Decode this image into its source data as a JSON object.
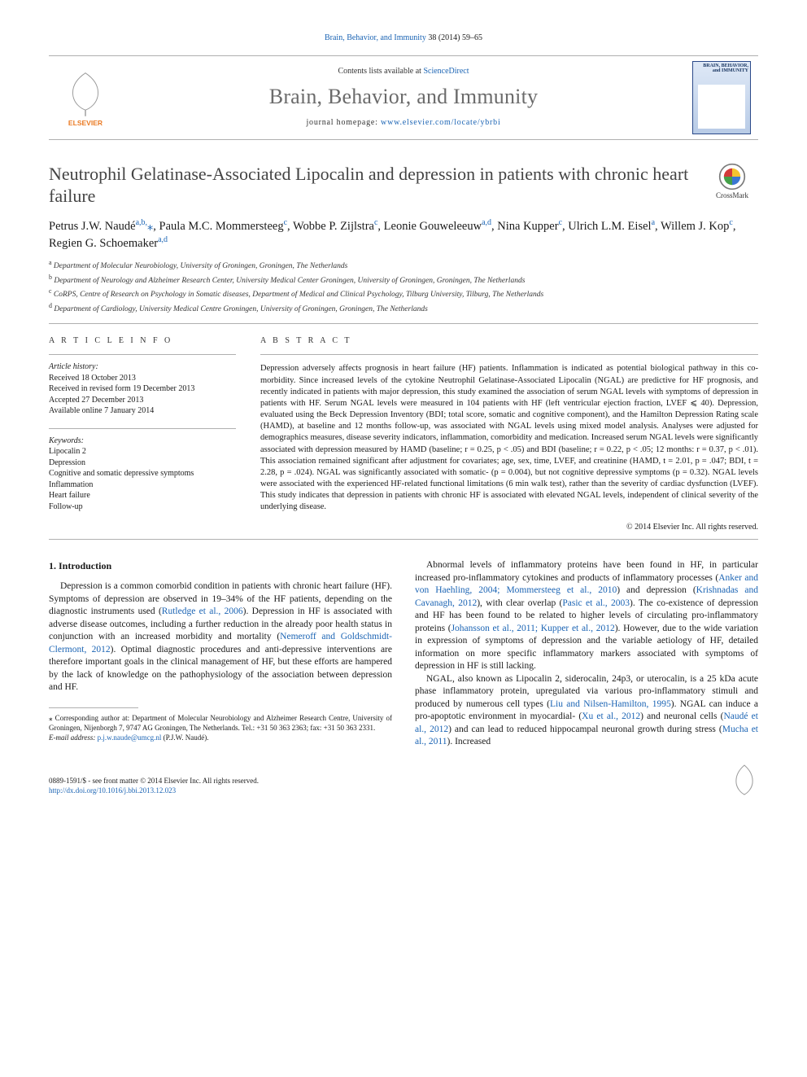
{
  "citation": {
    "journal_link": "Brain, Behavior, and Immunity",
    "issue": "38 (2014) 59–65"
  },
  "masthead": {
    "contents_prefix": "Contents lists available at ",
    "contents_link": "ScienceDirect",
    "journal_name": "Brain, Behavior, and Immunity",
    "homepage_prefix": "journal homepage: ",
    "homepage_url": "www.elsevier.com/locate/ybrbi",
    "cover_label": "BRAIN, BEHAVIOR, and IMMUNITY"
  },
  "article": {
    "title": "Neutrophil Gelatinase-Associated Lipocalin and depression in patients with chronic heart failure",
    "crossmark": "CrossMark"
  },
  "authors_html_parts": [
    {
      "name": "Petrus J.W. Naudé",
      "sup": "a,b,",
      "symb": "⁎"
    },
    {
      "name": ", Paula M.C. Mommersteeg",
      "sup": "c"
    },
    {
      "name": ", Wobbe P. Zijlstra",
      "sup": "c"
    },
    {
      "name": ", Leonie Gouweleeuw",
      "sup": "a,d"
    },
    {
      "name": ", Nina Kupper",
      "sup": "c"
    },
    {
      "name": ", Ulrich L.M. Eisel",
      "sup": "a"
    },
    {
      "name": ", Willem J. Kop",
      "sup": "c"
    },
    {
      "name": ", Regien G. Schoemaker",
      "sup": "a,d"
    }
  ],
  "affiliations": [
    {
      "sup": "a",
      "text": "Department of Molecular Neurobiology, University of Groningen, Groningen, The Netherlands"
    },
    {
      "sup": "b",
      "text": "Department of Neurology and Alzheimer Research Center, University Medical Center Groningen, University of Groningen, Groningen, The Netherlands"
    },
    {
      "sup": "c",
      "text": "CoRPS, Centre of Research on Psychology in Somatic diseases, Department of Medical and Clinical Psychology, Tilburg University, Tilburg, The Netherlands"
    },
    {
      "sup": "d",
      "text": "Department of Cardiology, University Medical Centre Groningen, University of Groningen, Groningen, The Netherlands"
    }
  ],
  "info_heading": "A R T I C L E   I N F O",
  "history_label": "Article history:",
  "history": [
    "Received 18 October 2013",
    "Received in revised form 19 December 2013",
    "Accepted 27 December 2013",
    "Available online 7 January 2014"
  ],
  "keywords_label": "Keywords:",
  "keywords": [
    "Lipocalin 2",
    "Depression",
    "Cognitive and somatic depressive symptoms",
    "Inflammation",
    "Heart failure",
    "Follow-up"
  ],
  "abstract_heading": "A B S T R A C T",
  "abstract": "Depression adversely affects prognosis in heart failure (HF) patients. Inflammation is indicated as potential biological pathway in this co-morbidity. Since increased levels of the cytokine Neutrophil Gelatinase-Associated Lipocalin (NGAL) are predictive for HF prognosis, and recently indicated in patients with major depression, this study examined the association of serum NGAL levels with symptoms of depression in patients with HF. Serum NGAL levels were measured in 104 patients with HF (left ventricular ejection fraction, LVEF ⩽ 40). Depression, evaluated using the Beck Depression Inventory (BDI; total score, somatic and cognitive component), and the Hamilton Depression Rating scale (HAMD), at baseline and 12 months follow-up, was associated with NGAL levels using mixed model analysis. Analyses were adjusted for demographics measures, disease severity indicators, inflammation, comorbidity and medication. Increased serum NGAL levels were significantly associated with depression measured by HAMD (baseline; r = 0.25, p < .05) and BDI (baseline; r = 0.22, p < .05; 12 months: r = 0.37, p < .01). This association remained significant after adjustment for covariates; age, sex, time, LVEF, and creatinine (HAMD, t = 2.01, p = .047; BDI, t = 2.28, p = .024). NGAL was significantly associated with somatic- (p = 0.004), but not cognitive depressive symptoms (p = 0.32). NGAL levels were associated with the experienced HF-related functional limitations (6 min walk test), rather than the severity of cardiac dysfunction (LVEF). This study indicates that depression in patients with chronic HF is associated with elevated NGAL levels, independent of clinical severity of the underlying disease.",
  "copyright": "© 2014 Elsevier Inc. All rights reserved.",
  "section1_heading": "1. Introduction",
  "body": {
    "p1a": "Depression is a common comorbid condition in patients with chronic heart failure (HF). Symptoms of depression are observed in 19–34% of the HF patients, depending on the diagnostic instruments used (",
    "p1_ref1": "Rutledge et al., 2006",
    "p1b": "). Depression in HF is associated with adverse disease outcomes, including a further reduction in the already poor health status in conjunction with an increased morbidity and mortality (",
    "p1_ref2": "Nemeroff and Goldschmidt-Clermont, 2012",
    "p1c": "). Optimal diagnostic procedures and anti-depressive interventions are therefore important goals in the clinical management of HF, but these efforts are hampered by the lack of knowledge on the pathophysiology of the association between depression and HF.",
    "p2a": "Abnormal levels of inflammatory proteins have been found in HF, in particular increased pro-inflammatory cytokines and products of inflammatory processes (",
    "p2_ref1": "Anker and von Haehling, 2004; Mommersteeg et al., 2010",
    "p2b": ") and depression (",
    "p2_ref2": "Krishnadas and Cavanagh, 2012",
    "p2c": "), with clear overlap (",
    "p2_ref3": "Pasic et al., 2003",
    "p2d": "). The co-existence of depression and HF has been found to be related to higher levels of circulating pro-inflammatory proteins (",
    "p2_ref4": "Johansson et al., 2011; Kupper et al., 2012",
    "p2e": "). However, due to the wide variation in expression of symptoms of depression and the variable aetiology of HF, detailed information on more specific inflammatory markers associated with symptoms of depression in HF is still lacking.",
    "p3a": "NGAL, also known as Lipocalin 2, siderocalin, 24p3, or uterocalin, is a 25 kDa acute phase inflammatory protein, upregulated via various pro-inflammatory stimuli and produced by numerous cell types (",
    "p3_ref1": "Liu and Nilsen-Hamilton, 1995",
    "p3b": "). NGAL can induce a pro-apoptotic environment in myocardial- (",
    "p3_ref2": "Xu et al., 2012",
    "p3c": ") and neuronal cells (",
    "p3_ref3": "Naudé et al., 2012",
    "p3d": ") and can lead to reduced hippocampal neuronal growth during stress (",
    "p3_ref4": "Mucha et al., 2011",
    "p3e": "). Increased"
  },
  "footnote": {
    "corr": "⁎ Corresponding author at: Department of Molecular Neurobiology and Alzheimer Research Centre, University of Groningen, Nijenborgh 7, 9747 AG Groningen, The Netherlands. Tel.: +31 50 363 2363; fax: +31 50 363 2331.",
    "email_label": "E-mail address:",
    "email": "p.j.w.naude@umcg.nl",
    "email_who": "(P.J.W. Naudé)."
  },
  "bottom": {
    "issn": "0889-1591/$ - see front matter © 2014 Elsevier Inc. All rights reserved.",
    "doi_label": "http://dx.doi.org/",
    "doi": "10.1016/j.bbi.2013.12.023"
  },
  "colors": {
    "link": "#1b64b4",
    "rule": "#b0b0b0",
    "heading_grey": "#6b6b6b",
    "elsevier_orange": "#ea7a23"
  }
}
